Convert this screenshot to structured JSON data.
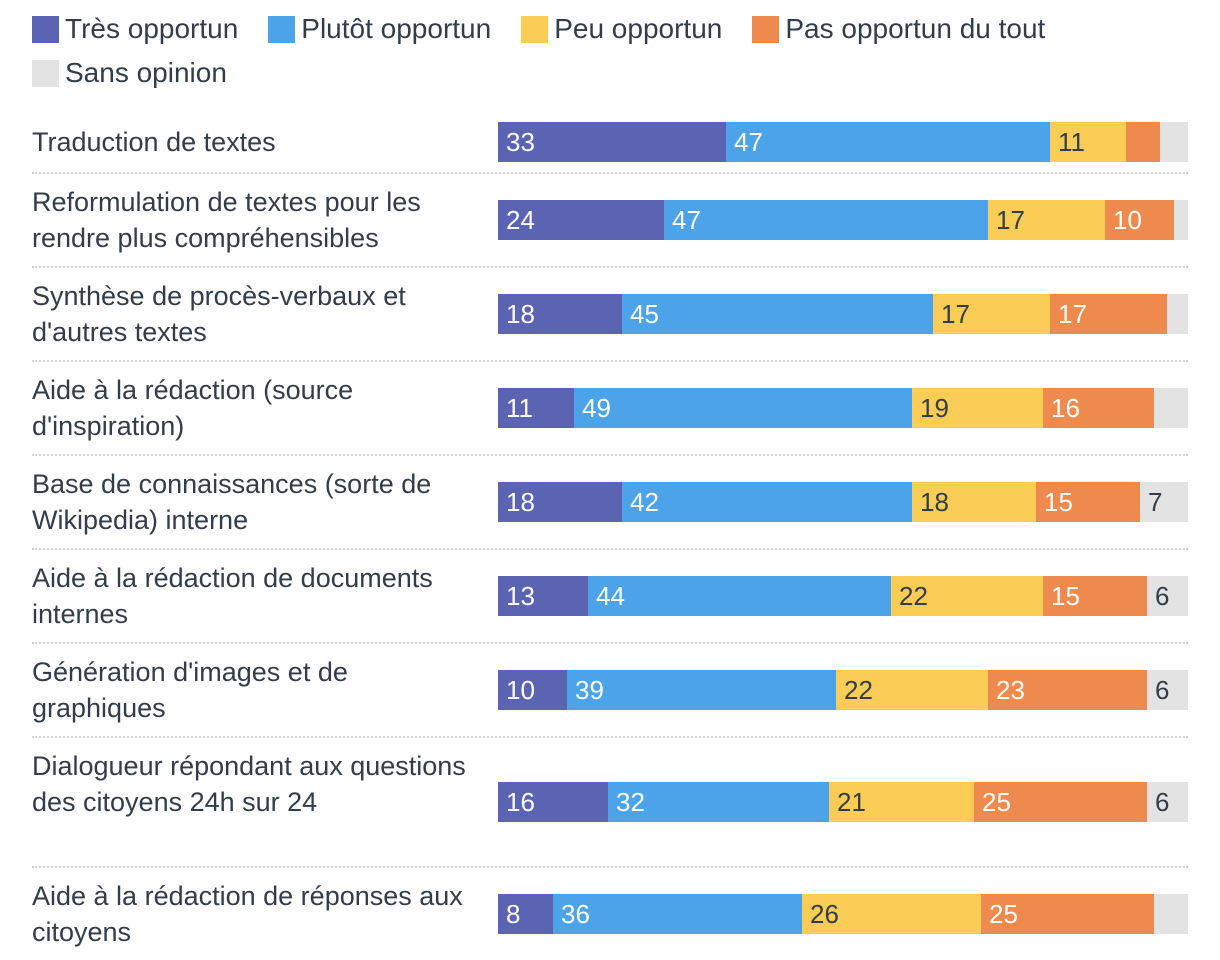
{
  "chart_data": {
    "type": "bar",
    "orientation": "horizontal",
    "stacked": true,
    "xlim": [
      0,
      100
    ],
    "legend_position": "top",
    "series": [
      {
        "name": "Très opportun",
        "color": "#5b64b2",
        "label_color": "#ffffff",
        "values": [
          33,
          24,
          18,
          11,
          18,
          13,
          10,
          16,
          8
        ]
      },
      {
        "name": "Plutôt opportun",
        "color": "#4da3e8",
        "label_color": "#ffffff",
        "values": [
          47,
          47,
          45,
          49,
          42,
          44,
          39,
          32,
          36
        ]
      },
      {
        "name": "Peu opportun",
        "color": "#fccd55",
        "label_color": "#333d4a",
        "values": [
          11,
          17,
          17,
          19,
          18,
          22,
          22,
          21,
          26
        ]
      },
      {
        "name": "Pas opportun du tout",
        "color": "#ee8a4e",
        "label_color": "#ffffff",
        "values": [
          5,
          10,
          17,
          16,
          15,
          15,
          23,
          25,
          25
        ]
      },
      {
        "name": "Sans opinion",
        "color": "#e3e3e3",
        "label_color": "#333d4a",
        "values": [
          4,
          2,
          3,
          5,
          7,
          6,
          6,
          6,
          5
        ]
      }
    ],
    "categories": [
      "Traduction de textes",
      "Reformulation de textes pour les rendre plus compréhensibles",
      "Synthèse de procès-verbaux et d'autres textes",
      "Aide à la rédaction (source d'inspiration)",
      "Base de connaissances (sorte de Wikipedia) interne",
      "Aide à la rédaction de documents internes",
      "Génération d'images et de graphiques",
      "Dialogueur répondant aux questions des citoyens 24h sur 24",
      "Aide à la rédaction de réponses aux citoyens"
    ],
    "labels": [
      [
        "33",
        "47",
        "11",
        "",
        ""
      ],
      [
        "24",
        "47",
        "17",
        "10",
        ""
      ],
      [
        "18",
        "45",
        "17",
        "17",
        ""
      ],
      [
        "11",
        "49",
        "19",
        "16",
        ""
      ],
      [
        "18",
        "42",
        "18",
        "15",
        "7"
      ],
      [
        "13",
        "44",
        "22",
        "15",
        "6"
      ],
      [
        "10",
        "39",
        "22",
        "23",
        "6"
      ],
      [
        "16",
        "32",
        "21",
        "25",
        "6"
      ],
      [
        "8",
        "36",
        "26",
        "25",
        ""
      ]
    ]
  }
}
